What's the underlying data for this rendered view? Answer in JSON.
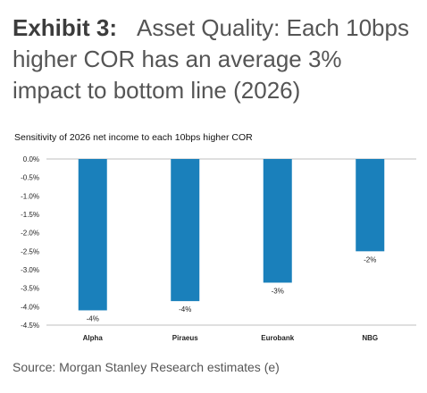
{
  "exhibit": {
    "label": "Exhibit 3:",
    "title": "Asset Quality: Each 10bps higher COR has an average 3% impact to bottom line (2026)"
  },
  "chart_data": {
    "type": "bar",
    "title": "Sensitivity of 2026 net income to each 10bps higher COR",
    "categories": [
      "Alpha",
      "Piraeus",
      "Eurobank",
      "NBG"
    ],
    "values": [
      -4.1,
      -3.85,
      -3.35,
      -2.5
    ],
    "data_labels": [
      "-4%",
      "-4%",
      "-3%",
      "-2%"
    ],
    "ylim": [
      -4.5,
      0
    ],
    "yticks": [
      0,
      -0.5,
      -1,
      -1.5,
      -2,
      -2.5,
      -3,
      -3.5,
      -4,
      -4.5
    ],
    "ytick_labels": [
      "0.0%",
      "-0.5%",
      "-1.0%",
      "-1.5%",
      "-2.0%",
      "-2.5%",
      "-3.0%",
      "-3.5%",
      "-4.0%",
      "-4.5%"
    ],
    "xlabel": "",
    "ylabel": "",
    "grid": false,
    "legend": "none",
    "bar_color": "#1a80bb"
  },
  "source": "Source: Morgan Stanley Research estimates (e)"
}
